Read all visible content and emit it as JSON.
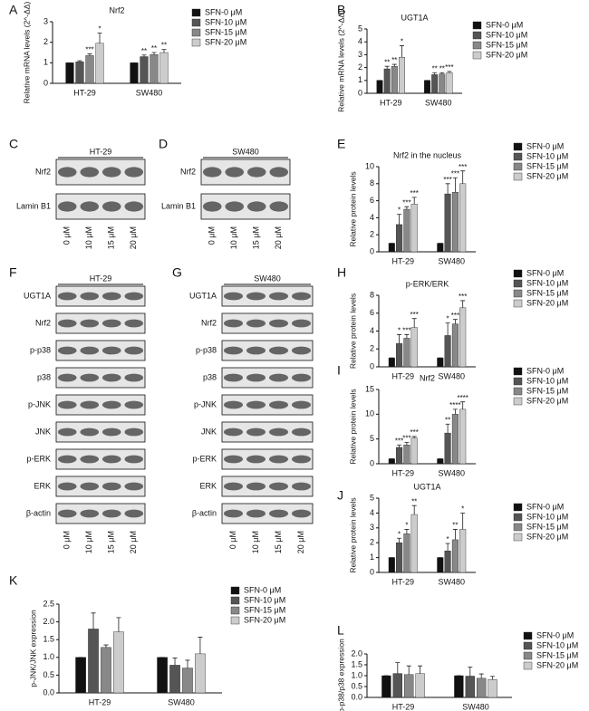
{
  "chart_data": [
    {
      "type": "bar",
      "panel": "A",
      "title": "Nrf2",
      "ylabel": "Relative mRNA levels (2^-ΔΔ)",
      "categories": [
        "HT-29",
        "SW480"
      ],
      "ylim": [
        0,
        3
      ],
      "yticks": [
        0,
        1,
        2,
        3
      ],
      "series": [
        {
          "name": "SFN-0 μM",
          "color": "#111111",
          "values": [
            1,
            1
          ],
          "errors": [
            0,
            0
          ],
          "annotations": [
            null,
            null
          ]
        },
        {
          "name": "SFN-10 μM",
          "color": "#555555",
          "values": [
            1.05,
            1.3
          ],
          "errors": [
            0.05,
            0.08
          ],
          "annotations": [
            null,
            "**"
          ]
        },
        {
          "name": "SFN-15 μM",
          "color": "#888888",
          "values": [
            1.35,
            1.4
          ],
          "errors": [
            0.08,
            0.1
          ],
          "annotations": [
            "***",
            "**"
          ]
        },
        {
          "name": "SFN-20 μM",
          "color": "#cccccc",
          "values": [
            1.95,
            1.5
          ],
          "errors": [
            0.5,
            0.15
          ],
          "annotations": [
            "*",
            "**"
          ]
        }
      ]
    },
    {
      "type": "bar",
      "panel": "B",
      "title": "UGT1A",
      "ylabel": "Relative mRNA levels (2^-ΔΔ)",
      "categories": [
        "HT-29",
        "SW480"
      ],
      "ylim": [
        0,
        5
      ],
      "yticks": [
        0,
        1,
        2,
        3,
        4,
        5
      ],
      "series": [
        {
          "name": "SFN-0 μM",
          "color": "#111111",
          "values": [
            1,
            1
          ],
          "errors": [
            0,
            0
          ],
          "annotations": [
            null,
            null
          ]
        },
        {
          "name": "SFN-10 μM",
          "color": "#555555",
          "values": [
            1.9,
            1.45
          ],
          "errors": [
            0.2,
            0.15
          ],
          "annotations": [
            "**",
            "**"
          ]
        },
        {
          "name": "SFN-15 μM",
          "color": "#888888",
          "values": [
            2.1,
            1.5
          ],
          "errors": [
            0.15,
            0.1
          ],
          "annotations": [
            "**",
            "**"
          ]
        },
        {
          "name": "SFN-20 μM",
          "color": "#cccccc",
          "values": [
            2.8,
            1.6
          ],
          "errors": [
            0.9,
            0.1
          ],
          "annotations": [
            "*",
            "***"
          ]
        }
      ]
    },
    {
      "type": "bar",
      "panel": "E",
      "title": "Nrf2 in the nucleus",
      "ylabel": "Relative protein levels",
      "categories": [
        "HT-29",
        "SW480"
      ],
      "ylim": [
        0,
        10
      ],
      "yticks": [
        0,
        2,
        4,
        6,
        8,
        10
      ],
      "series": [
        {
          "name": "SFN-0 μM",
          "color": "#111111",
          "values": [
            1,
            1
          ],
          "errors": [
            0,
            0
          ],
          "annotations": [
            null,
            null
          ]
        },
        {
          "name": "SFN-10 μM",
          "color": "#555555",
          "values": [
            3.2,
            6.8
          ],
          "errors": [
            1.2,
            1.2
          ],
          "annotations": [
            "*",
            "***"
          ]
        },
        {
          "name": "SFN-15 μM",
          "color": "#888888",
          "values": [
            5,
            7
          ],
          "errors": [
            0.3,
            1.7
          ],
          "annotations": [
            "***",
            "***"
          ]
        },
        {
          "name": "SFN-20 μM",
          "color": "#cccccc",
          "values": [
            5.6,
            8
          ],
          "errors": [
            0.8,
            1.5
          ],
          "annotations": [
            "***",
            "***"
          ]
        }
      ]
    },
    {
      "type": "bar",
      "panel": "H",
      "title": "p-ERK/ERK",
      "ylabel": "Relative protein levels",
      "categories": [
        "HT-29",
        "SW480"
      ],
      "ylim": [
        0,
        8
      ],
      "yticks": [
        0,
        2,
        4,
        6,
        8
      ],
      "series": [
        {
          "name": "SFN-0 μM",
          "color": "#111111",
          "values": [
            1,
            1
          ],
          "errors": [
            0,
            0
          ],
          "annotations": [
            null,
            null
          ]
        },
        {
          "name": "SFN-10 μM",
          "color": "#555555",
          "values": [
            2.6,
            3.5
          ],
          "errors": [
            1,
            1.4
          ],
          "annotations": [
            "*",
            "*"
          ]
        },
        {
          "name": "SFN-15 μM",
          "color": "#888888",
          "values": [
            3.2,
            4.8
          ],
          "errors": [
            0.4,
            0.5
          ],
          "annotations": [
            "***",
            "***"
          ]
        },
        {
          "name": "SFN-20 μM",
          "color": "#cccccc",
          "values": [
            4.4,
            6.6
          ],
          "errors": [
            1,
            0.8
          ],
          "annotations": [
            "***",
            "***"
          ]
        }
      ]
    },
    {
      "type": "bar",
      "panel": "I",
      "title": "Nrf2",
      "ylabel": "Relative protein levels",
      "categories": [
        "HT-29",
        "SW480"
      ],
      "ylim": [
        0,
        15
      ],
      "yticks": [
        0,
        5,
        10,
        15
      ],
      "series": [
        {
          "name": "SFN-0 μM",
          "color": "#111111",
          "values": [
            1,
            1
          ],
          "errors": [
            0,
            0
          ],
          "annotations": [
            null,
            null
          ]
        },
        {
          "name": "SFN-10 μM",
          "color": "#555555",
          "values": [
            3.3,
            6.2
          ],
          "errors": [
            0.5,
            1.8
          ],
          "annotations": [
            "***",
            "**"
          ]
        },
        {
          "name": "SFN-15 μM",
          "color": "#888888",
          "values": [
            3.8,
            10
          ],
          "errors": [
            0.5,
            1
          ],
          "annotations": [
            "***",
            "****"
          ]
        },
        {
          "name": "SFN-20 μM",
          "color": "#cccccc",
          "values": [
            5.2,
            11
          ],
          "errors": [
            0.3,
            1.5
          ],
          "annotations": [
            "***",
            "****"
          ]
        }
      ]
    },
    {
      "type": "bar",
      "panel": "J",
      "title": "UGT1A",
      "ylabel": "Relative protein levels",
      "categories": [
        "HT-29",
        "SW480"
      ],
      "ylim": [
        0,
        5
      ],
      "yticks": [
        0,
        1,
        2,
        3,
        4,
        5
      ],
      "series": [
        {
          "name": "SFN-0 μM",
          "color": "#111111",
          "values": [
            1,
            1
          ],
          "errors": [
            0,
            0
          ],
          "annotations": [
            null,
            null
          ]
        },
        {
          "name": "SFN-10 μM",
          "color": "#555555",
          "values": [
            2,
            1.45
          ],
          "errors": [
            0.3,
            0.5
          ],
          "annotations": [
            "*",
            "*"
          ]
        },
        {
          "name": "SFN-15 μM",
          "color": "#888888",
          "values": [
            2.6,
            2.2
          ],
          "errors": [
            0.3,
            0.7
          ],
          "annotations": [
            "*",
            "**"
          ]
        },
        {
          "name": "SFN-20 μM",
          "color": "#cccccc",
          "values": [
            3.9,
            2.9
          ],
          "errors": [
            0.6,
            1.1
          ],
          "annotations": [
            "**",
            "*"
          ]
        }
      ]
    },
    {
      "type": "bar",
      "panel": "K",
      "ylabel": "p-JNK/JNK expression",
      "categories": [
        "HT-29",
        "SW480"
      ],
      "ylim": [
        0,
        2.5
      ],
      "yticks": [
        {
          "value": 0,
          "label": "0.0"
        },
        0.5,
        {
          "value": 1,
          "label": "1.0"
        },
        1.5,
        {
          "value": 2,
          "label": "2.0"
        },
        2.5
      ],
      "series": [
        {
          "name": "SFN-0 μM",
          "color": "#111111",
          "values": [
            1,
            1
          ],
          "errors": [
            0,
            0
          ]
        },
        {
          "name": "SFN-10 μM",
          "color": "#555555",
          "values": [
            1.8,
            0.78
          ],
          "errors": [
            0.45,
            0.2
          ]
        },
        {
          "name": "SFN-15 μM",
          "color": "#888888",
          "values": [
            1.28,
            0.7
          ],
          "errors": [
            0.07,
            0.22
          ]
        },
        {
          "name": "SFN-20 μM",
          "color": "#cccccc",
          "values": [
            1.72,
            1.1
          ],
          "errors": [
            0.4,
            0.47
          ]
        }
      ]
    },
    {
      "type": "bar",
      "panel": "L",
      "ylabel": "p-p38/p38 expression",
      "categories": [
        "HT-29",
        "SW480"
      ],
      "ylim": [
        0,
        2
      ],
      "yticks": [
        {
          "value": 0,
          "label": "0.0"
        },
        0.5,
        {
          "value": 1,
          "label": "1.0"
        },
        1.5,
        {
          "value": 2,
          "label": "2.0"
        }
      ],
      "series": [
        {
          "name": "SFN-0 μM",
          "color": "#111111",
          "values": [
            1,
            1
          ],
          "errors": [
            0,
            0
          ]
        },
        {
          "name": "SFN-10 μM",
          "color": "#555555",
          "values": [
            1.1,
            0.98
          ],
          "errors": [
            0.5,
            0.42
          ]
        },
        {
          "name": "SFN-15 μM",
          "color": "#888888",
          "values": [
            1.05,
            0.88
          ],
          "errors": [
            0.4,
            0.2
          ]
        },
        {
          "name": "SFN-20 μM",
          "color": "#cccccc",
          "values": [
            1.1,
            0.82
          ],
          "errors": [
            0.35,
            0.15
          ]
        }
      ]
    }
  ],
  "blots": [
    {
      "panel": "C",
      "title": "HT-29",
      "rows": [
        "Nrf2",
        "Lamin B1"
      ],
      "lanes": [
        "0 μM",
        "10 μM",
        "15 μM",
        "20 μM"
      ]
    },
    {
      "panel": "D",
      "title": "SW480",
      "rows": [
        "Nrf2",
        "Lamin B1"
      ],
      "lanes": [
        "0 μM",
        "10 μM",
        "15 μM",
        "20 μM"
      ]
    },
    {
      "panel": "F",
      "title": "HT-29",
      "rows": [
        "UGT1A",
        "Nrf2",
        "p-p38",
        "p38",
        "p-JNK",
        "JNK",
        "p-ERK",
        "ERK",
        "β-actin"
      ],
      "lanes": [
        "0 μM",
        "10 μM",
        "15 μM",
        "20 μM"
      ]
    },
    {
      "panel": "G",
      "title": "SW480",
      "rows": [
        "UGT1A",
        "Nrf2",
        "p-p38",
        "p38",
        "p-JNK",
        "JNK",
        "p-ERK",
        "ERK",
        "β-actin"
      ],
      "lanes": [
        "0 μM",
        "10 μM",
        "15 μM",
        "20 μM"
      ]
    }
  ]
}
